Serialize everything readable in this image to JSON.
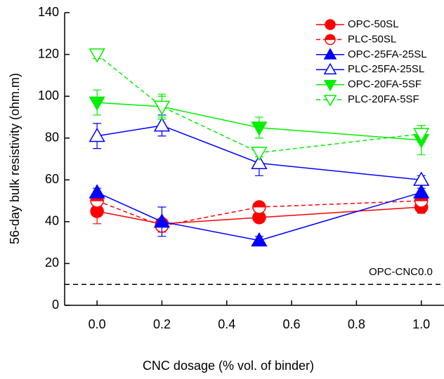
{
  "chart_data": {
    "type": "line",
    "x_label": "CNC dosage (% vol. of binder)",
    "y_label": "56-day bulk resistivity (ohm.m)",
    "x": [
      0,
      0.2,
      0.5,
      1.0
    ],
    "xlim": [
      -0.1,
      1.07
    ],
    "xticks": [
      {
        "value": 0,
        "label": "0.0"
      },
      {
        "value": 0.2,
        "label": "0.2"
      },
      {
        "value": 0.4,
        "label": "0.4"
      },
      {
        "value": 0.6,
        "label": "0.6"
      },
      {
        "value": 0.8,
        "label": "0.8"
      },
      {
        "value": 1.0,
        "label": "1.0"
      }
    ],
    "ylim": [
      0,
      140
    ],
    "yticks": [
      0,
      20,
      40,
      60,
      80,
      100,
      120,
      140
    ],
    "reference_lines": [
      {
        "value": 10,
        "label": "OPC-CNC0.0"
      }
    ],
    "legend": "upper right",
    "series": [
      {
        "name": "OPC-50SL",
        "color": "#ff0000",
        "marker": "circle",
        "fill": "full",
        "linestyle": "solid",
        "values": [
          45,
          39,
          42,
          47
        ],
        "errors": [
          6,
          2,
          2,
          3
        ]
      },
      {
        "name": "PLC-50SL",
        "color": "#ff0000",
        "marker": "circle",
        "fill": "half",
        "linestyle": "dashed",
        "values": [
          50,
          38,
          47,
          50
        ],
        "errors": [
          2,
          3,
          2,
          2
        ]
      },
      {
        "name": "OPC-25FA-25SL",
        "color": "#0000ff",
        "marker": "triangle-up",
        "fill": "full",
        "linestyle": "solid",
        "values": [
          54,
          40,
          31,
          54
        ],
        "errors": [
          2,
          7,
          2,
          2
        ]
      },
      {
        "name": "PLC-25FA-25SL",
        "color": "#0000ff",
        "marker": "triangle-up",
        "fill": "none",
        "linestyle": "solid",
        "values": [
          81,
          86,
          68,
          60
        ],
        "errors": [
          6,
          5,
          6,
          2
        ]
      },
      {
        "name": "OPC-20FA-5SF",
        "color": "#00ee00",
        "marker": "triangle-down",
        "fill": "full",
        "linestyle": "solid",
        "values": [
          97,
          95,
          85,
          79
        ],
        "errors": [
          6,
          6,
          5,
          7
        ]
      },
      {
        "name": "PLC-20FA-5SF",
        "color": "#00ee00",
        "marker": "triangle-down",
        "fill": "none",
        "linestyle": "dashed",
        "values": [
          120,
          95,
          73,
          82
        ],
        "errors": [
          2,
          5,
          2,
          4
        ]
      }
    ]
  }
}
